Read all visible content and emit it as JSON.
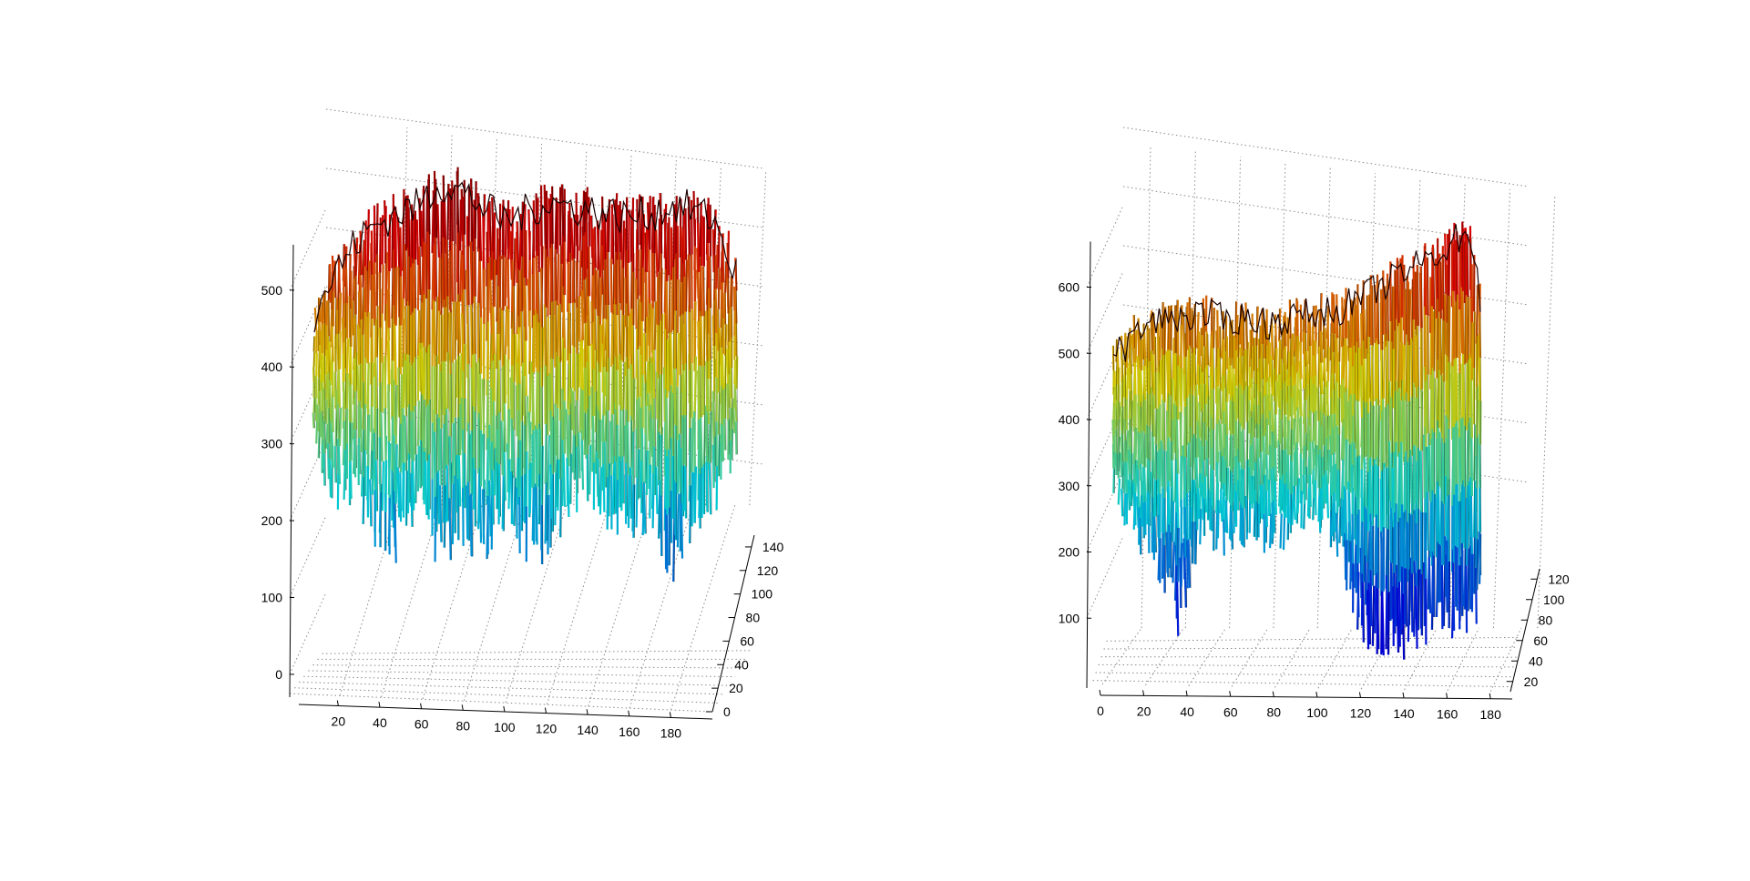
{
  "chart_data": [
    {
      "type": "surface",
      "title": "",
      "xlabel": "",
      "ylabel": "",
      "zlabel": "",
      "x_ticks": [
        20,
        40,
        60,
        80,
        100,
        120,
        140,
        160,
        180
      ],
      "y_ticks": [
        0,
        20,
        40,
        60,
        80,
        100,
        120,
        140
      ],
      "z_ticks": [
        0,
        100,
        200,
        300,
        400,
        500
      ],
      "xlim": [
        1,
        200
      ],
      "ylim": [
        0,
        150
      ],
      "zlim": [
        -25,
        700
      ],
      "grid": true,
      "colormap": "jet",
      "z_profile": {
        "x": [
          1,
          10,
          20,
          30,
          40,
          50,
          60,
          70,
          80,
          90,
          100,
          110,
          120,
          130,
          140,
          150,
          160,
          170,
          180,
          190,
          200
        ],
        "top": [
          470,
          520,
          560,
          585,
          600,
          610,
          640,
          630,
          610,
          590,
          600,
          615,
          610,
          605,
          600,
          595,
          600,
          610,
          605,
          590,
          520
        ],
        "bottom": [
          270,
          230,
          220,
          180,
          150,
          210,
          140,
          180,
          150,
          200,
          160,
          140,
          200,
          240,
          190,
          160,
          210,
          120,
          190,
          220,
          290
        ]
      }
    },
    {
      "type": "surface",
      "title": "",
      "xlabel": "",
      "ylabel": "",
      "zlabel": "",
      "x_ticks": [
        0,
        20,
        40,
        60,
        80,
        100,
        120,
        140,
        160,
        180
      ],
      "y_ticks": [
        20,
        40,
        60,
        80,
        100,
        120
      ],
      "z_ticks": [
        100,
        200,
        300,
        400,
        500,
        600
      ],
      "xlim": [
        0,
        190
      ],
      "ylim": [
        10,
        130
      ],
      "zlim": [
        0,
        800
      ],
      "grid": true,
      "colormap": "jet",
      "z_profile": {
        "x": [
          10,
          20,
          30,
          40,
          50,
          60,
          70,
          80,
          90,
          100,
          110,
          120,
          130,
          140,
          150,
          160,
          170,
          175
        ],
        "top": [
          490,
          530,
          550,
          555,
          560,
          550,
          555,
          545,
          555,
          560,
          565,
          580,
          600,
          620,
          640,
          660,
          690,
          580
        ],
        "bottom": [
          290,
          210,
          170,
          80,
          230,
          200,
          220,
          210,
          220,
          240,
          210,
          90,
          40,
          50,
          60,
          80,
          90,
          110
        ]
      }
    }
  ]
}
